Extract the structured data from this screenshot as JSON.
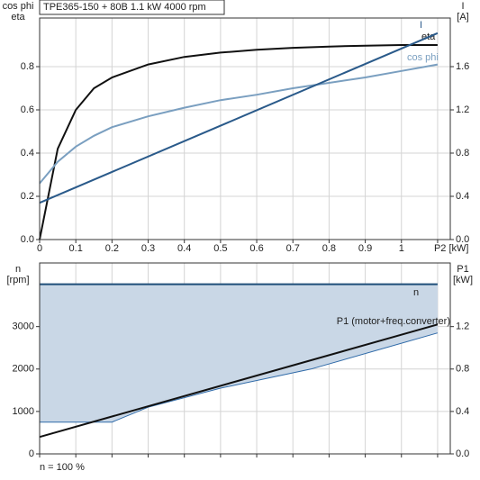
{
  "chart_data": [
    {
      "type": "line",
      "title": "TPE365-150 + 80B   1.1 kW   4000 rpm",
      "y_label": [
        "cos phi",
        "eta"
      ],
      "y2_label": [
        "I",
        "[A]"
      ],
      "xlim": [
        0,
        1.135
      ],
      "xticks": [
        0,
        0.1,
        0.2,
        0.3,
        0.4,
        0.5,
        0.6,
        0.7,
        0.8,
        0.9,
        1.0,
        {
          "value": 1.1,
          "label": "P2 [kW]"
        }
      ],
      "ylim": [
        0,
        1.025
      ],
      "yticks": [
        {
          "value": 0,
          "label": "0.0"
        },
        0.2,
        0.4,
        0.6,
        0.8
      ],
      "y2lim": [
        0,
        2.05
      ],
      "y2ticks": [
        {
          "value": 0,
          "label": "0.0"
        },
        0.4,
        0.8,
        1.2,
        1.6
      ],
      "grid": true,
      "series": [
        {
          "name": "eta",
          "color": "#111111",
          "x": [
            0,
            0.05,
            0.1,
            0.15,
            0.2,
            0.3,
            0.4,
            0.5,
            0.6,
            0.7,
            0.8,
            0.9,
            1.0,
            1.1
          ],
          "values": [
            0,
            0.42,
            0.6,
            0.7,
            0.75,
            0.81,
            0.845,
            0.865,
            0.878,
            0.887,
            0.893,
            0.897,
            0.9,
            0.9
          ]
        },
        {
          "name": "cos phi",
          "color": "#7a9fc0",
          "x": [
            0,
            0.05,
            0.1,
            0.15,
            0.2,
            0.3,
            0.4,
            0.5,
            0.6,
            0.7,
            0.8,
            0.9,
            1.0,
            1.1
          ],
          "values": [
            0.26,
            0.36,
            0.43,
            0.48,
            0.52,
            0.57,
            0.61,
            0.645,
            0.67,
            0.7,
            0.725,
            0.75,
            0.78,
            0.81
          ]
        },
        {
          "name": "I",
          "color": "#2a5a8a",
          "axis": "y2",
          "x": [
            0,
            1.1
          ],
          "values": [
            0.34,
            1.91
          ]
        }
      ]
    },
    {
      "type": "area",
      "footer": "n = 100 %",
      "y_label": [
        "n",
        "[rpm]"
      ],
      "y2_label": [
        "P1",
        "[kW]"
      ],
      "xlim": [
        0,
        1.135
      ],
      "xticks": [
        0,
        0.1,
        0.2,
        0.3,
        0.4,
        0.5,
        0.6,
        0.7,
        0.8,
        0.9,
        1.0,
        1.1
      ],
      "ylim": [
        0,
        4500
      ],
      "yticks": [
        0,
        1000,
        2000,
        3000
      ],
      "y2lim": [
        0,
        1.8
      ],
      "y2ticks": [
        {
          "value": 0,
          "label": "0.0"
        },
        0.4,
        0.8,
        1.2
      ],
      "grid": true,
      "fill": "#c9d7e6",
      "series": [
        {
          "name": "n",
          "color": "#1f4e79",
          "x": [
            0,
            1.1
          ],
          "values": [
            4000,
            4000
          ]
        },
        {
          "color": "#2f6aa8",
          "x": [
            0,
            0.2,
            0.3,
            0.5,
            0.75,
            1.1
          ],
          "values": [
            750,
            750,
            1100,
            1550,
            2000,
            2850
          ]
        },
        {
          "name": "P1 (motor+freq.converter)",
          "color": "#111111",
          "axis": "y2",
          "x": [
            0,
            1.1
          ],
          "values": [
            0.16,
            1.22
          ]
        }
      ]
    }
  ]
}
